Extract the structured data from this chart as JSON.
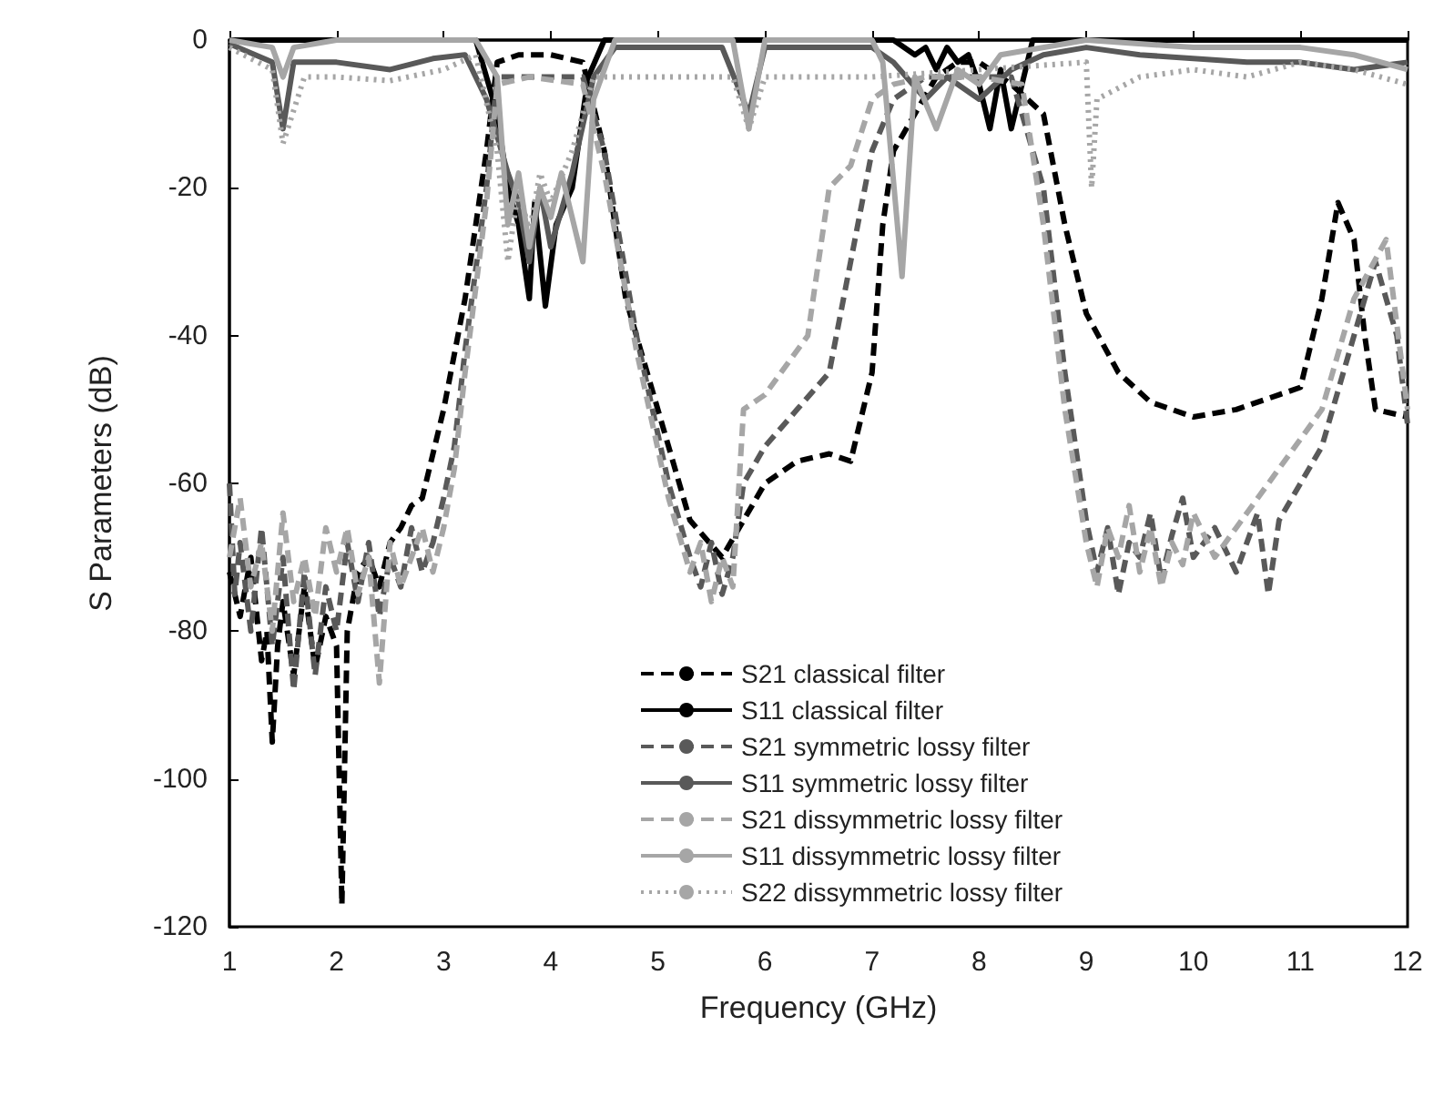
{
  "chart_data": {
    "type": "line",
    "xlabel": "Frequency (GHz)",
    "ylabel": "S Parameters (dB)",
    "xlim": [
      1,
      12
    ],
    "xticks": [
      1,
      2,
      3,
      4,
      5,
      6,
      7,
      8,
      9,
      10,
      11,
      12
    ],
    "ylim": [
      -120,
      0
    ],
    "yticks": [
      -120,
      -100,
      -80,
      -60,
      -40,
      -20,
      0
    ],
    "grid": false,
    "legend": "bottom",
    "marker": "none",
    "series": [
      {
        "name": "S21 classical filter",
        "color": "#000000",
        "line_style": "dashed",
        "x": [
          1,
          1.1,
          1.2,
          1.3,
          1.35,
          1.4,
          1.45,
          1.5,
          1.6,
          1.7,
          1.8,
          1.9,
          2,
          2.05,
          2.1,
          2.2,
          2.3,
          2.4,
          2.5,
          2.6,
          2.7,
          2.8,
          2.9,
          3,
          3.2,
          3.4,
          3.5,
          3.7,
          4,
          4.3,
          4.5,
          4.7,
          5,
          5.3,
          5.6,
          5.8,
          6,
          6.3,
          6.6,
          6.8,
          7,
          7.1,
          7.2,
          7.4,
          7.6,
          7.8,
          8,
          8.3,
          8.6,
          8.8,
          9,
          9.3,
          9.6,
          10,
          10.4,
          10.8,
          11,
          11.2,
          11.35,
          11.5,
          11.6,
          11.7,
          12
        ],
        "values": [
          -72,
          -78,
          -70,
          -84,
          -80,
          -95,
          -82,
          -76,
          -86,
          -74,
          -85,
          -78,
          -82,
          -117,
          -80,
          -72,
          -70,
          -74,
          -68,
          -66,
          -63,
          -62,
          -56,
          -50,
          -35,
          -15,
          -3,
          -2,
          -2,
          -3,
          -15,
          -35,
          -50,
          -65,
          -70,
          -65,
          -60,
          -57,
          -56,
          -57,
          -45,
          -25,
          -15,
          -10,
          -5,
          -3,
          -3,
          -6,
          -10,
          -25,
          -37,
          -45,
          -49,
          -51,
          -50,
          -48,
          -47,
          -35,
          -22,
          -27,
          -40,
          -50,
          -51
        ]
      },
      {
        "name": "S11 classical filter",
        "color": "#000000",
        "line_style": "solid",
        "x": [
          1,
          2,
          3,
          3.3,
          3.5,
          3.6,
          3.7,
          3.8,
          3.85,
          3.95,
          4.05,
          4.2,
          4.35,
          4.5,
          5,
          6,
          7,
          7.2,
          7.4,
          7.5,
          7.6,
          7.7,
          7.8,
          7.9,
          8,
          8.1,
          8.2,
          8.3,
          8.5,
          9,
          10,
          11,
          12
        ],
        "values": [
          0,
          0,
          0,
          0,
          -10,
          -20,
          -25,
          -35,
          -22,
          -36,
          -25,
          -20,
          -5,
          0,
          0,
          0,
          0,
          0,
          -2,
          -1,
          -4,
          -1,
          -3,
          -2,
          -6,
          -12,
          -4,
          -12,
          0,
          0,
          0,
          0,
          0
        ]
      },
      {
        "name": "S21 symmetric lossy filter",
        "color": "#595959",
        "line_style": "dashed",
        "x": [
          1,
          1.05,
          1.1,
          1.2,
          1.3,
          1.4,
          1.5,
          1.6,
          1.7,
          1.8,
          1.9,
          2,
          2.1,
          2.2,
          2.3,
          2.4,
          2.5,
          2.6,
          2.7,
          2.8,
          2.9,
          3,
          3.1,
          3.2,
          3.4,
          3.5,
          3.8,
          4.3,
          4.5,
          4.8,
          5.1,
          5.3,
          5.4,
          5.5,
          5.6,
          5.7,
          5.8,
          6,
          6.3,
          6.6,
          6.8,
          7,
          7.2,
          7.5,
          8,
          8.3,
          8.6,
          8.8,
          9,
          9.1,
          9.2,
          9.3,
          9.4,
          9.5,
          9.6,
          9.7,
          9.8,
          9.9,
          10,
          10.2,
          10.4,
          10.6,
          10.7,
          10.8,
          11.2,
          11.5,
          11.7,
          11.9,
          12
        ],
        "values": [
          -60,
          -75,
          -68,
          -80,
          -66,
          -82,
          -70,
          -88,
          -72,
          -86,
          -74,
          -80,
          -68,
          -76,
          -68,
          -78,
          -70,
          -74,
          -66,
          -72,
          -68,
          -62,
          -55,
          -42,
          -20,
          -5,
          -5,
          -5,
          -15,
          -40,
          -60,
          -70,
          -74,
          -68,
          -75,
          -70,
          -60,
          -55,
          -50,
          -45,
          -30,
          -15,
          -8,
          -5,
          -5,
          -5,
          -20,
          -45,
          -65,
          -72,
          -66,
          -75,
          -68,
          -70,
          -64,
          -73,
          -67,
          -62,
          -70,
          -66,
          -72,
          -64,
          -75,
          -65,
          -55,
          -40,
          -30,
          -40,
          -52
        ]
      },
      {
        "name": "S11 symmetric lossy filter",
        "color": "#595959",
        "line_style": "solid",
        "x": [
          1,
          1.4,
          1.5,
          1.6,
          2,
          2.5,
          2.9,
          3.2,
          3.4,
          3.6,
          3.7,
          3.8,
          3.9,
          4,
          4.2,
          4.4,
          4.6,
          5,
          5.6,
          5.85,
          6,
          7,
          7.2,
          7.5,
          7.7,
          8,
          8.3,
          8.6,
          9,
          9.5,
          10.5,
          11,
          11.5,
          12
        ],
        "values": [
          -0.5,
          -3,
          -12,
          -3,
          -3,
          -4,
          -2.5,
          -2,
          -8,
          -18,
          -22,
          -30,
          -20,
          -28,
          -18,
          -5,
          -1,
          -1,
          -1,
          -10,
          -1,
          -1,
          -3,
          -8,
          -5,
          -8,
          -4,
          -2,
          -1,
          -2,
          -3,
          -3,
          -4,
          -3
        ]
      },
      {
        "name": "S21 dissymmetric lossy filter",
        "color": "#a6a6a6",
        "line_style": "dashed",
        "x": [
          1,
          1.1,
          1.2,
          1.3,
          1.4,
          1.5,
          1.6,
          1.7,
          1.8,
          1.9,
          2,
          2.1,
          2.2,
          2.3,
          2.4,
          2.5,
          2.6,
          2.7,
          2.8,
          2.9,
          3,
          3.1,
          3.2,
          3.4,
          3.5,
          3.8,
          4.3,
          4.5,
          4.8,
          5.1,
          5.3,
          5.4,
          5.5,
          5.6,
          5.7,
          5.8,
          6,
          6.4,
          6.6,
          6.8,
          7,
          7.2,
          7.5,
          8,
          8.4,
          8.6,
          8.8,
          9,
          9.1,
          9.2,
          9.3,
          9.4,
          9.5,
          9.6,
          9.7,
          9.8,
          9.9,
          10,
          10.2,
          10.4,
          10.6,
          10.8,
          11.2,
          11.5,
          11.8,
          12
        ],
        "values": [
          -70,
          -62,
          -74,
          -68,
          -80,
          -64,
          -76,
          -70,
          -78,
          -66,
          -72,
          -66,
          -75,
          -70,
          -87,
          -68,
          -74,
          -70,
          -66,
          -72,
          -66,
          -58,
          -45,
          -22,
          -6,
          -5,
          -6,
          -18,
          -42,
          -62,
          -72,
          -68,
          -76,
          -70,
          -74,
          -50,
          -48,
          -40,
          -20,
          -17,
          -8,
          -6,
          -5,
          -5,
          -6,
          -25,
          -50,
          -68,
          -74,
          -66,
          -70,
          -63,
          -72,
          -66,
          -74,
          -68,
          -71,
          -64,
          -70,
          -66,
          -62,
          -58,
          -50,
          -35,
          -27,
          -50
        ]
      },
      {
        "name": "S11 dissymmetric lossy filter",
        "color": "#a6a6a6",
        "line_style": "solid",
        "x": [
          1,
          1.4,
          1.5,
          1.6,
          2,
          3,
          3.3,
          3.5,
          3.6,
          3.7,
          3.8,
          3.9,
          4,
          4.1,
          4.3,
          4.4,
          4.6,
          5,
          5.7,
          5.85,
          6,
          7,
          7.1,
          7.28,
          7.4,
          7.6,
          7.8,
          8,
          8.2,
          9,
          10,
          11,
          11.5,
          12
        ],
        "values": [
          0,
          -1,
          -5,
          -1,
          0,
          0,
          0,
          -5,
          -25,
          -18,
          -28,
          -20,
          -24,
          -18,
          -30,
          -8,
          0,
          0,
          0,
          -12,
          0,
          0,
          -3,
          -32,
          -5,
          -12,
          -4,
          -6,
          -2,
          0,
          -1,
          -1,
          -2,
          -4
        ]
      },
      {
        "name": "S22 dissymmetric lossy filter",
        "color": "#a6a6a6",
        "line_style": "dotted",
        "x": [
          1,
          1.4,
          1.5,
          1.7,
          2,
          2.5,
          3,
          3.3,
          3.5,
          3.6,
          3.7,
          3.8,
          3.9,
          4,
          4.2,
          4.4,
          5,
          5.7,
          5.85,
          6,
          7,
          8,
          9,
          9.05,
          9.1,
          9.5,
          10,
          10.5,
          11,
          11.5,
          12
        ],
        "values": [
          -1,
          -4,
          -14,
          -5,
          -5,
          -5.5,
          -4,
          -2,
          -15,
          -30,
          -20,
          -26,
          -18,
          -22,
          -15,
          -5,
          -5,
          -5,
          -12,
          -5,
          -5,
          -4,
          -3,
          -20,
          -8,
          -5,
          -4,
          -5,
          -3,
          -4,
          -6
        ]
      }
    ]
  }
}
